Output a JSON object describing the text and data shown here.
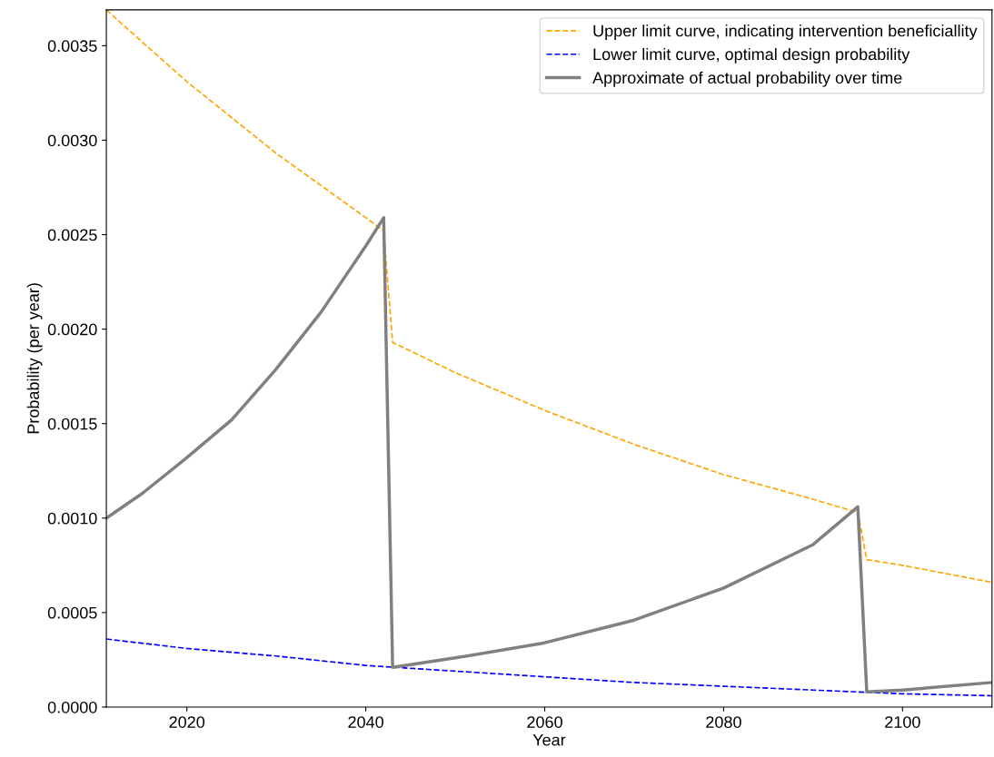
{
  "chart_data": {
    "type": "line",
    "xlabel": "Year",
    "ylabel": "Probability (per year)",
    "xlim": [
      2011,
      2110
    ],
    "ylim": [
      0,
      0.00369
    ],
    "xticks": [
      2020,
      2040,
      2060,
      2080,
      2100
    ],
    "yticks": [
      {
        "value": 0,
        "label": "0.0000"
      },
      {
        "value": 0.0005,
        "label": "0.0005"
      },
      {
        "value": 0.001,
        "label": "0.0010"
      },
      {
        "value": 0.0015,
        "label": "0.0015"
      },
      {
        "value": 0.002,
        "label": "0.0020"
      },
      {
        "value": 0.0025,
        "label": "0.0025"
      },
      {
        "value": 0.003,
        "label": "0.0030"
      },
      {
        "value": 0.0035,
        "label": "0.0035"
      }
    ],
    "grid": false,
    "legend": "top right",
    "series": [
      {
        "name": "Upper limit curve, indicating intervention beneficiallity",
        "color": "#ffa500",
        "line_style": "dashed",
        "x": [
          2011,
          2015,
          2020,
          2025,
          2030,
          2035,
          2040,
          2042,
          2043,
          2050,
          2060,
          2070,
          2080,
          2090,
          2095,
          2096,
          2100,
          2110
        ],
        "values": [
          0.00369,
          0.00352,
          0.00331,
          0.00312,
          0.00293,
          0.00276,
          0.00259,
          0.00252,
          0.00193,
          0.00177,
          0.00157,
          0.00139,
          0.00123,
          0.0011,
          0.00103,
          0.00078,
          0.00075,
          0.00066
        ]
      },
      {
        "name": "Lower limit curve, optimal design probability",
        "color": "#0000ff",
        "line_style": "dashed",
        "x": [
          2011,
          2020,
          2030,
          2040,
          2050,
          2060,
          2070,
          2080,
          2090,
          2100,
          2110
        ],
        "values": [
          0.00036,
          0.00031,
          0.00027,
          0.00022,
          0.00019,
          0.00016,
          0.00013,
          0.00011,
          9e-05,
          7e-05,
          6e-05
        ]
      },
      {
        "name": "Approximate of actual probability over time",
        "color": "#808080",
        "line_style": "solid",
        "x": [
          2011,
          2015,
          2020,
          2025,
          2030,
          2035,
          2040,
          2042,
          2043,
          2050,
          2060,
          2070,
          2080,
          2090,
          2095,
          2096,
          2100,
          2110
        ],
        "values": [
          0.001,
          0.00113,
          0.00132,
          0.00152,
          0.00179,
          0.00209,
          0.00244,
          0.00259,
          0.00021,
          0.00026,
          0.00034,
          0.00046,
          0.00063,
          0.00086,
          0.00106,
          8e-05,
          9e-05,
          0.00013
        ]
      }
    ]
  }
}
